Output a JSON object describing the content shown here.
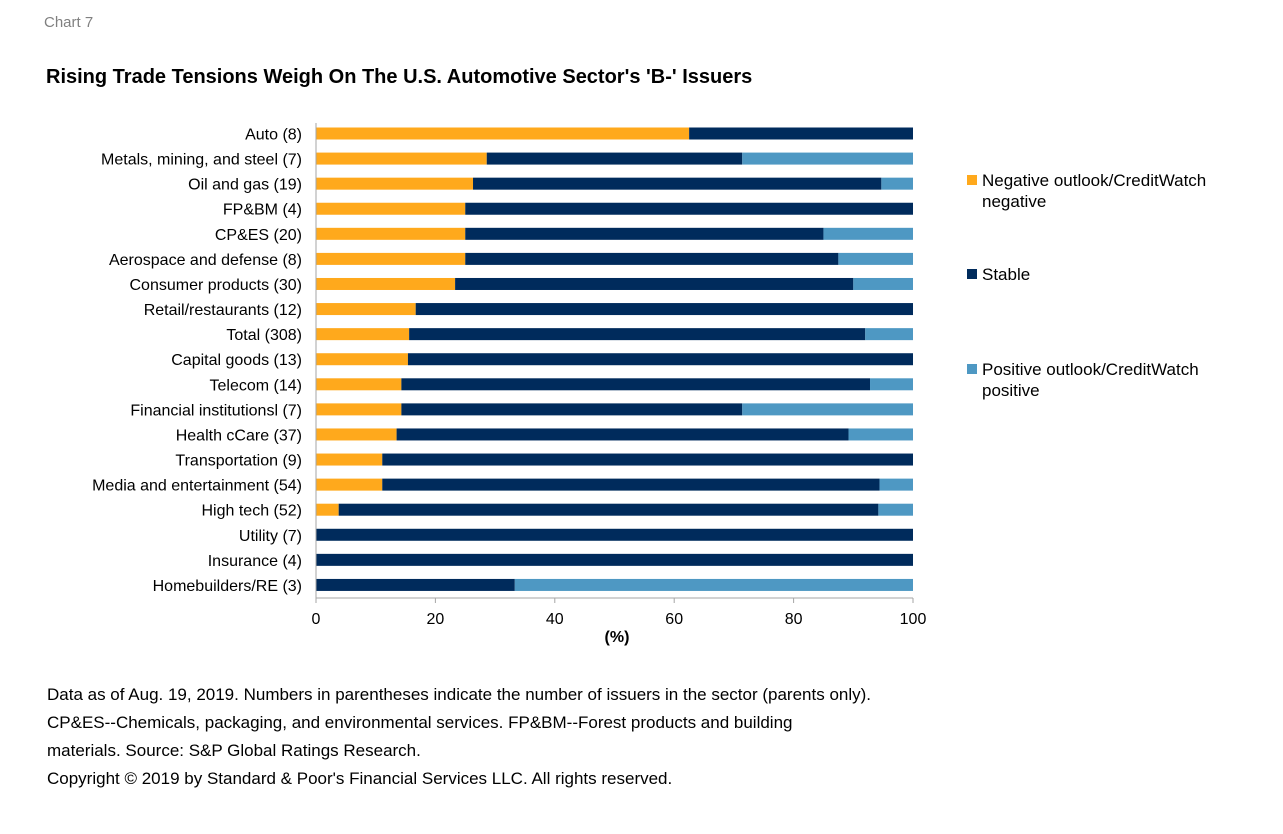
{
  "header": {
    "chart_label": "Chart 7",
    "title": "Rising Trade Tensions Weigh On The U.S. Automotive Sector's 'B-' Issuers"
  },
  "colors": {
    "negative": "#FFA91C",
    "stable": "#002B5C",
    "positive": "#4E98C3",
    "axis": "#A6A6A6"
  },
  "chart_data": {
    "type": "bar",
    "orientation": "horizontal",
    "stacked": true,
    "title": "Rising Trade Tensions Weigh On The U.S. Automotive Sector's 'B-' Issuers",
    "xlabel": "(%)",
    "ylabel": "",
    "xlim": [
      0,
      100
    ],
    "xticks": [
      "0",
      "20",
      "40",
      "60",
      "80",
      "100"
    ],
    "grid": false,
    "legend_position": "right",
    "categories": [
      "Auto (8)",
      "Metals, mining, and steel (7)",
      "Oil and gas (19)",
      "FP&BM (4)",
      "CP&ES (20)",
      "Aerospace and defense (8)",
      "Consumer products (30)",
      "Retail/restaurants (12)",
      "Total (308)",
      "Capital goods (13)",
      "Telecom (14)",
      "Financial institutionsl (7)",
      "Health cCare (37)",
      "Transportation (9)",
      "Media and entertainment (54)",
      "High tech (52)",
      "Utility (7)",
      "Insurance (4)",
      "Homebuilders/RE (3)"
    ],
    "series": [
      {
        "name": "Negative outlook/CreditWatch negative",
        "values": [
          62.5,
          28.6,
          26.3,
          25.0,
          25.0,
          25.0,
          23.3,
          16.7,
          15.6,
          15.4,
          14.3,
          14.3,
          13.5,
          11.1,
          11.1,
          3.8,
          0,
          0,
          0
        ]
      },
      {
        "name": "Stable",
        "values": [
          37.5,
          42.8,
          68.4,
          75.0,
          60.0,
          62.5,
          66.7,
          83.3,
          76.4,
          84.6,
          78.5,
          57.1,
          75.7,
          88.9,
          83.3,
          90.4,
          100,
          100,
          33.3
        ]
      },
      {
        "name": "Positive outlook/CreditWatch positive",
        "values": [
          0,
          28.6,
          5.3,
          0,
          15.0,
          12.5,
          10.0,
          0,
          8.0,
          0,
          7.2,
          28.6,
          10.8,
          0,
          5.6,
          5.8,
          0,
          0,
          66.7
        ]
      }
    ],
    "legend": [
      {
        "line1": "Negative outlook/CreditWatch",
        "line2": "negative"
      },
      {
        "line1": "Stable",
        "line2": ""
      },
      {
        "line1": "Positive outlook/CreditWatch",
        "line2": "positive"
      }
    ]
  },
  "footnotes": [
    "Data as of Aug. 19, 2019. Numbers in parentheses indicate the number of issuers in the sector (parents only).",
    "CP&ES--Chemicals, packaging, and environmental services. FP&BM--Forest products and building",
    "materials. Source: S&P Global Ratings Research.",
    "Copyright © 2019 by Standard & Poor's Financial Services LLC. All rights reserved."
  ]
}
